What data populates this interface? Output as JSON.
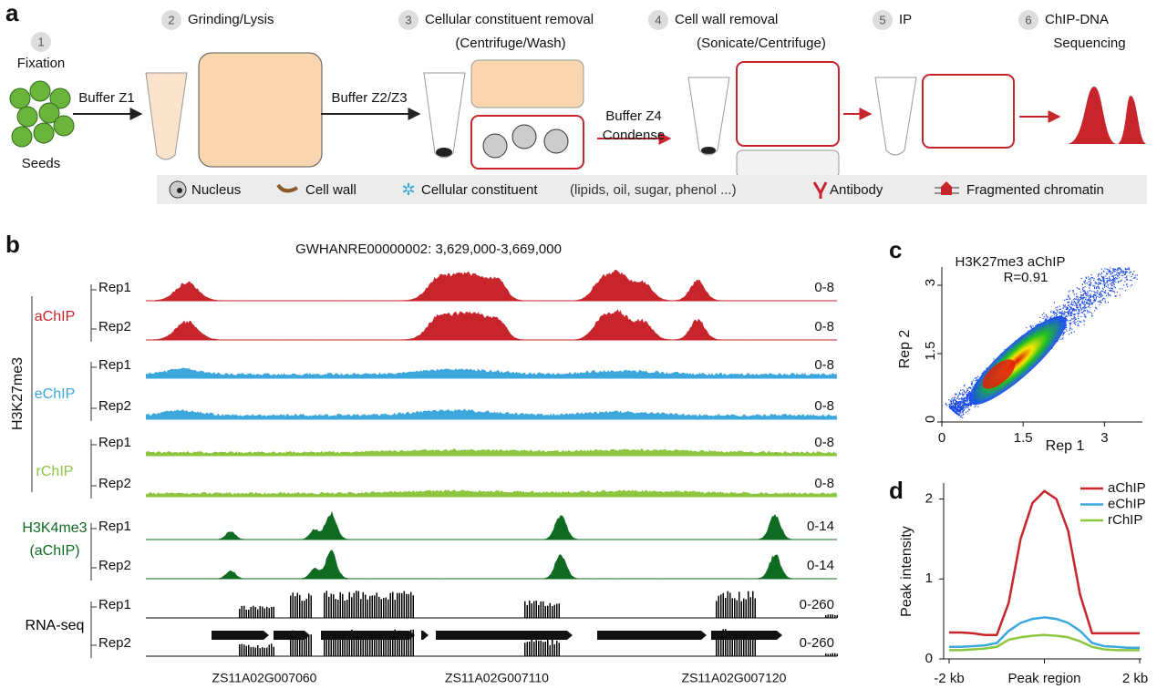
{
  "panel_a": {
    "label": "a",
    "steps": [
      {
        "num": "1",
        "title": "Fixation"
      },
      {
        "num": "2",
        "title": "Grinding/Lysis"
      },
      {
        "num": "3",
        "title": "Cellular constituent removal",
        "sub": "(Centrifuge/Wash)"
      },
      {
        "num": "4",
        "title": "Cell wall removal",
        "sub": "(Sonicate/Centrifuge)"
      },
      {
        "num": "5",
        "title": "IP"
      },
      {
        "num": "6",
        "title": "ChIP-DNA",
        "sub": "Sequencing"
      }
    ],
    "seeds": "Seeds",
    "buffers": [
      "Buffer Z1",
      "Buffer Z2/Z3",
      "Buffer Z4",
      "Condense"
    ],
    "legend": [
      "Nucleus",
      "Cell wall",
      "Cellular constituent",
      "(lipids, oil, sugar, phenol ...)",
      "Antibody",
      "Fragmented chromatin"
    ]
  },
  "panel_b": {
    "label": "b",
    "region": "GWHANRE00000002: 3,629,000-3,669,000",
    "mark": "H3K27me3",
    "groups": [
      {
        "name": [
          "aChIP"
        ],
        "color": "#c8242b",
        "tracks": [
          {
            "rep": "Rep1",
            "range": "0-8"
          },
          {
            "rep": "Rep2",
            "range": "0-8"
          }
        ]
      },
      {
        "name": [
          "eChIP"
        ],
        "color": "#3ba7dc",
        "tracks": [
          {
            "rep": "Rep1",
            "range": "0-8"
          },
          {
            "rep": "Rep2",
            "range": "0-8"
          }
        ]
      },
      {
        "name": [
          "rChIP"
        ],
        "color": "#8cc63f",
        "tracks": [
          {
            "rep": "Rep1",
            "range": "0-8"
          },
          {
            "rep": "Rep2",
            "range": "0-8"
          }
        ]
      },
      {
        "name": [
          "H3K4me3",
          "(aChIP)"
        ],
        "color": "#0f6b22",
        "tracks": [
          {
            "rep": "Rep1",
            "range": "0-14"
          },
          {
            "rep": "Rep2",
            "range": "0-14"
          }
        ]
      },
      {
        "name": [
          "RNA-seq"
        ],
        "color": "#000000",
        "tracks": [
          {
            "rep": "Rep1",
            "range": "0-260"
          },
          {
            "rep": "Rep2",
            "range": "0-260"
          }
        ]
      }
    ],
    "genes": [
      "ZS11A02G007060",
      "ZS11A02G007110",
      "ZS11A02G007120"
    ]
  },
  "panel_c": {
    "label": "c",
    "type": "density",
    "title": "H3K27me3 aChIP",
    "annotation": "R=0.91",
    "xlabel": "Rep 1",
    "ylabel": "Rep 2",
    "xlim": [
      0,
      3.7
    ],
    "ylim": [
      0,
      3.4
    ],
    "xticks": [
      0,
      1.5,
      3
    ],
    "yticks": [
      0,
      1.5,
      3
    ]
  },
  "panel_d": {
    "label": "d",
    "type": "line",
    "ylabel": "Peak intensity",
    "x": [
      -2,
      -1.75,
      -1.5,
      -1.25,
      -1,
      -0.75,
      -0.5,
      -0.25,
      0,
      0.25,
      0.5,
      0.75,
      1,
      1.25,
      1.5,
      1.75,
      2
    ],
    "xlim": [
      -2,
      2
    ],
    "xticks": [
      {
        "value": -2,
        "label": "-2 kb"
      },
      {
        "value": 0,
        "label": "Peak region"
      },
      {
        "value": 2,
        "label": "2 kb"
      }
    ],
    "ylim": [
      0,
      2.2
    ],
    "yticks": [
      0,
      1,
      2
    ],
    "legend": "upper right",
    "series": [
      {
        "name": "aChIP",
        "color": "#c8242b",
        "values": [
          0.33,
          0.33,
          0.32,
          0.3,
          0.3,
          0.7,
          1.5,
          1.95,
          2.1,
          2.0,
          1.6,
          0.8,
          0.32,
          0.32,
          0.32,
          0.32,
          0.32
        ]
      },
      {
        "name": "eChIP",
        "color": "#3ba7dc",
        "values": [
          0.15,
          0.15,
          0.16,
          0.17,
          0.2,
          0.35,
          0.45,
          0.5,
          0.52,
          0.5,
          0.45,
          0.35,
          0.2,
          0.16,
          0.15,
          0.14,
          0.14
        ]
      },
      {
        "name": "rChIP",
        "color": "#8cc63f",
        "values": [
          0.11,
          0.11,
          0.12,
          0.13,
          0.15,
          0.24,
          0.27,
          0.29,
          0.3,
          0.29,
          0.27,
          0.22,
          0.15,
          0.12,
          0.11,
          0.11,
          0.11
        ]
      }
    ]
  }
}
